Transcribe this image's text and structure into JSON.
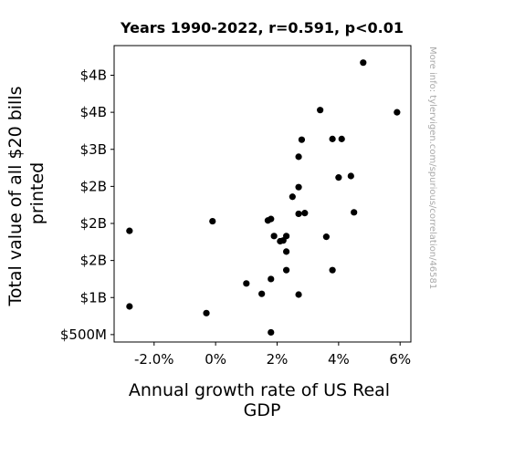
{
  "chart_data": {
    "type": "scatter",
    "title": "Years 1990-2022, r=0.591, p<0.01",
    "xlabel_lines": [
      "Annual growth rate of US Real",
      "GDP"
    ],
    "ylabel_lines": [
      "Total value of all $20 bills",
      "printed"
    ],
    "side_note": "More info: tylervigen.com/spurious/correlation/46581",
    "x_unit": "percent",
    "y_unit": "USD",
    "xlim": [
      -3.3,
      6.35
    ],
    "ylim": [
      400000000,
      4400000000
    ],
    "x_ticks": [
      {
        "value": -2.0,
        "label": "-2.0%"
      },
      {
        "value": 0.0,
        "label": "0%"
      },
      {
        "value": 2.0,
        "label": "2%"
      },
      {
        "value": 4.0,
        "label": "4%"
      },
      {
        "value": 6.0,
        "label": "6%"
      }
    ],
    "y_ticks": [
      {
        "value": 500000000,
        "label": "$500M"
      },
      {
        "value": 1000000000,
        "label": "$1B"
      },
      {
        "value": 1500000000,
        "label": "$2B"
      },
      {
        "value": 2000000000,
        "label": "$2B"
      },
      {
        "value": 2500000000,
        "label": "$2B"
      },
      {
        "value": 3000000000,
        "label": "$3B"
      },
      {
        "value": 3500000000,
        "label": "$4B"
      },
      {
        "value": 4000000000,
        "label": "$4B"
      }
    ],
    "grid": false,
    "marker_color": "#000000",
    "points": [
      {
        "x": -2.8,
        "y": 1900000000
      },
      {
        "x": -2.8,
        "y": 880000000
      },
      {
        "x": -0.3,
        "y": 790000000
      },
      {
        "x": -0.1,
        "y": 2030000000
      },
      {
        "x": 1.0,
        "y": 1190000000
      },
      {
        "x": 1.5,
        "y": 1050000000
      },
      {
        "x": 1.7,
        "y": 2040000000
      },
      {
        "x": 1.8,
        "y": 2060000000
      },
      {
        "x": 1.8,
        "y": 1250000000
      },
      {
        "x": 1.8,
        "y": 530000000
      },
      {
        "x": 1.9,
        "y": 1830000000
      },
      {
        "x": 2.1,
        "y": 1760000000
      },
      {
        "x": 2.2,
        "y": 1770000000
      },
      {
        "x": 2.3,
        "y": 1830000000
      },
      {
        "x": 2.3,
        "y": 1620000000
      },
      {
        "x": 2.3,
        "y": 1370000000
      },
      {
        "x": 2.5,
        "y": 2360000000
      },
      {
        "x": 2.7,
        "y": 2900000000
      },
      {
        "x": 2.7,
        "y": 2490000000
      },
      {
        "x": 2.7,
        "y": 2130000000
      },
      {
        "x": 2.7,
        "y": 1040000000
      },
      {
        "x": 2.8,
        "y": 3130000000
      },
      {
        "x": 2.9,
        "y": 2140000000
      },
      {
        "x": 3.4,
        "y": 3530000000
      },
      {
        "x": 3.6,
        "y": 1820000000
      },
      {
        "x": 3.8,
        "y": 3140000000
      },
      {
        "x": 3.8,
        "y": 1370000000
      },
      {
        "x": 4.0,
        "y": 2620000000
      },
      {
        "x": 4.1,
        "y": 3140000000
      },
      {
        "x": 4.4,
        "y": 2640000000
      },
      {
        "x": 4.5,
        "y": 2150000000
      },
      {
        "x": 4.8,
        "y": 4170000000
      },
      {
        "x": 5.9,
        "y": 3500000000
      }
    ]
  }
}
